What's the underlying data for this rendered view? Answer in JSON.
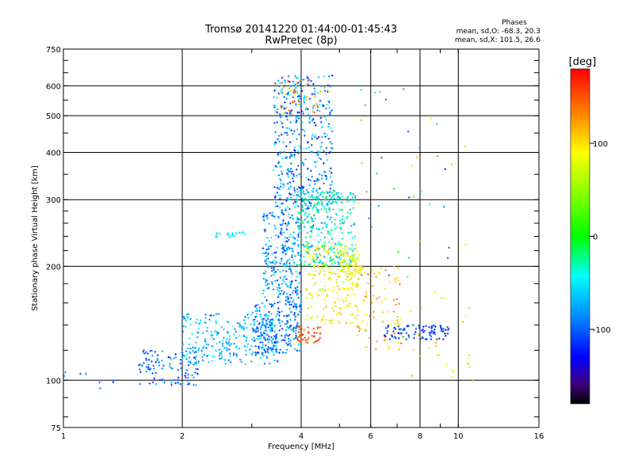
{
  "chart_data": {
    "type": "scatter",
    "title": "Tromsø 20141220 01:44:00-01:45:43",
    "subtitle": "RwPretec (8p)",
    "xlabel": "Frequency [MHz]",
    "ylabel": "Stationary phase Virtual Height [km]",
    "x_scale": "log",
    "y_scale": "log",
    "xlim": [
      1,
      16
    ],
    "ylim": [
      75,
      750
    ],
    "x_ticks": [
      1,
      2,
      4,
      6,
      8,
      10,
      16
    ],
    "x_tick_labels": [
      "1",
      "2",
      "4",
      "6",
      "8",
      "10",
      "16"
    ],
    "x_grid": [
      2,
      4,
      6,
      8,
      10
    ],
    "y_ticks": [
      75,
      100,
      200,
      300,
      400,
      500,
      600,
      750
    ],
    "y_tick_labels": [
      "75",
      "100",
      "200",
      "300",
      "400",
      "500",
      "600",
      "750"
    ],
    "y_grid": [
      100,
      200,
      300,
      400,
      500,
      600
    ],
    "grid": true,
    "colorbar": {
      "label": "[deg]",
      "range": [
        -180,
        180
      ],
      "ticks": [
        100,
        0,
        -100
      ],
      "tick_labels": [
        "100",
        "0",
        "-100"
      ]
    },
    "stats": {
      "title": "Phases",
      "line1": "mean, sd,O: -68.3, 20.3",
      "line2": "mean, sd,X: 101.5, 26.6"
    },
    "clusters": [
      {
        "f": [
          1.0,
          1.35
        ],
        "h": [
          95,
          105
        ],
        "phase": [
          -110,
          -70
        ],
        "n": 8
      },
      {
        "f": [
          1.55,
          2.2
        ],
        "h": [
          97,
          120
        ],
        "phase": [
          -115,
          -60
        ],
        "n": 110
      },
      {
        "f": [
          2.0,
          3.5
        ],
        "h": [
          110,
          150
        ],
        "phase": [
          -90,
          -40
        ],
        "n": 260
      },
      {
        "f": [
          2.4,
          2.9
        ],
        "h": [
          238,
          246
        ],
        "phase": [
          -55,
          -35
        ],
        "n": 22
      },
      {
        "f": [
          3.0,
          4.0
        ],
        "h": [
          118,
          160
        ],
        "phase": [
          -110,
          -55
        ],
        "n": 230
      },
      {
        "f": [
          3.2,
          4.0
        ],
        "h": [
          160,
          280
        ],
        "phase": [
          -110,
          -45
        ],
        "n": 280
      },
      {
        "f": [
          3.4,
          4.8
        ],
        "h": [
          280,
          640
        ],
        "phase": [
          -115,
          -40
        ],
        "n": 420
      },
      {
        "f": [
          3.9,
          5.5
        ],
        "h": [
          200,
          320
        ],
        "phase": [
          -80,
          -10
        ],
        "n": 320
      },
      {
        "f": [
          3.9,
          4.5
        ],
        "h": [
          125,
          140
        ],
        "phase": [
          135,
          175
        ],
        "n": 45
      },
      {
        "f": [
          4.1,
          5.6
        ],
        "h": [
          140,
          230
        ],
        "phase": [
          60,
          120
        ],
        "n": 220
      },
      {
        "f": [
          5.0,
          5.7
        ],
        "h": [
          190,
          215
        ],
        "phase": [
          60,
          100
        ],
        "n": 60
      },
      {
        "f": [
          3.5,
          4.6
        ],
        "h": [
          500,
          630
        ],
        "phase": [
          100,
          170
        ],
        "n": 40
      },
      {
        "f": [
          5.5,
          7.2
        ],
        "h": [
          120,
          200
        ],
        "phase": [
          80,
          150
        ],
        "n": 80
      },
      {
        "f": [
          6.5,
          9.5
        ],
        "h": [
          128,
          140
        ],
        "phase": [
          -115,
          -90
        ],
        "n": 90
      },
      {
        "f": [
          5.5,
          10.5
        ],
        "h": [
          180,
          600
        ],
        "phase": [
          -110,
          140
        ],
        "n": 40
      },
      {
        "f": [
          7.0,
          11.0
        ],
        "h": [
          100,
          180
        ],
        "phase": [
          60,
          130
        ],
        "n": 30
      }
    ]
  }
}
